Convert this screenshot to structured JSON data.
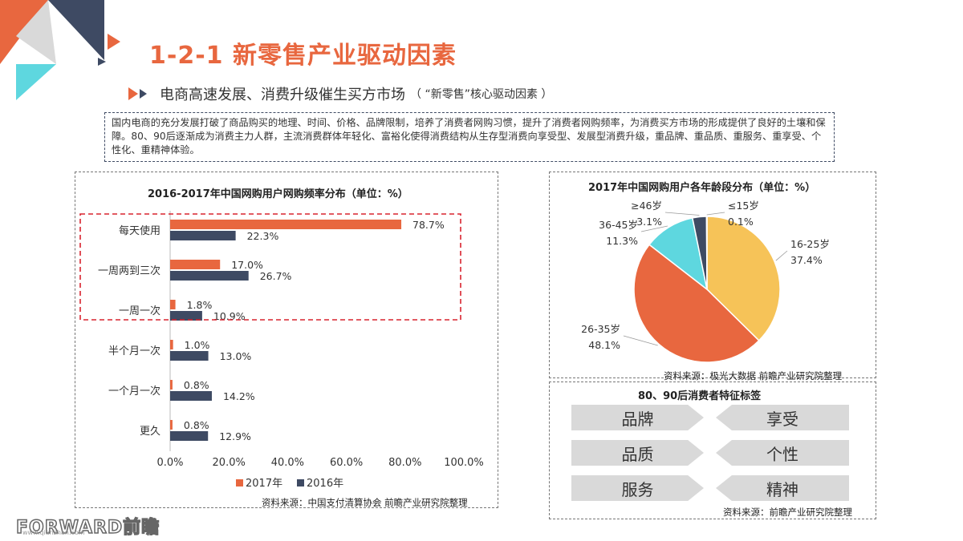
{
  "header": {
    "title": "1-2-1  新零售产业驱动因素",
    "subtitle": "电商高速发展、消费升级催生买方市场",
    "subtitle_paren": "（ “新零售”核心驱动因素 ）"
  },
  "intro_text": "国内电商的充分发展打破了商品购买的地理、时间、价格、品牌限制，培养了消费者网购习惯，提升了消费者网购频率，为消费买方市场的形成提供了良好的土壤和保障。80、90后逐渐成为消费主力人群，主流消费群体年轻化、富裕化使得消费结构从生存型消费向享受型、发展型消费升级，重品牌、重品质、重服务、重享受、个性化、重精神体验。",
  "colors": {
    "orange": "#e8673f",
    "navy": "#3e4a63",
    "yellow": "#f6c358",
    "cyan": "#5ed7df",
    "gray": "#d9d9d9"
  },
  "chart_data": [
    {
      "type": "bar",
      "orientation": "horizontal",
      "title": "2016-2017年中国网购用户网购频率分布（单位：%）",
      "categories": [
        "每天使用",
        "一周两到三次",
        "一周一次",
        "半个月一次",
        "一个月一次",
        "更久"
      ],
      "series": [
        {
          "name": "2017年",
          "color": "#e8673f",
          "values": [
            78.7,
            17.0,
            1.8,
            1.0,
            0.8,
            0.8
          ],
          "labels": [
            "78.7%",
            "17.0%",
            "1.8%",
            "1.0%",
            "0.8%",
            "0.8%"
          ]
        },
        {
          "name": "2016年",
          "color": "#3e4a63",
          "values": [
            22.3,
            26.7,
            10.9,
            13.0,
            14.2,
            12.9
          ],
          "labels": [
            "22.3%",
            "26.7%",
            "10.9%",
            "13.0%",
            "14.2%",
            "12.9%"
          ]
        }
      ],
      "xlim": [
        0,
        100
      ],
      "xticks": [
        "0.0%",
        "20.0%",
        "40.0%",
        "60.0%",
        "80.0%",
        "100.0%"
      ],
      "legend": "bottom",
      "highlight_categories": [
        "每天使用",
        "一周两到三次"
      ],
      "source": "资料来源：中国支付清算协会 前瞻产业研究院整理"
    },
    {
      "type": "pie",
      "title": "2017年中国网购用户各年龄段分布（单位：%）",
      "slices": [
        {
          "label": "16-25岁",
          "value": 37.4,
          "pct": "37.4%",
          "color": "#f6c358"
        },
        {
          "label": "26-35岁",
          "value": 48.1,
          "pct": "48.1%",
          "color": "#e8673f"
        },
        {
          "label": "36-45岁",
          "value": 11.3,
          "pct": "11.3%",
          "color": "#5ed7df"
        },
        {
          "label": "≥46岁",
          "value": 3.1,
          "pct": "3.1%",
          "color": "#3e4a63"
        },
        {
          "label": "≤15岁",
          "value": 0.1,
          "pct": "0.1%",
          "color": "#d9d9d9"
        }
      ],
      "source": "资料来源：极光大数据 前瞻产业研究院整理"
    }
  ],
  "tags_panel": {
    "title": "80、90后消费者特征标签",
    "left": [
      "品牌",
      "品质",
      "服务"
    ],
    "right": [
      "享受",
      "个性",
      "精神"
    ],
    "source": "资料来源：前瞻产业研究院整理"
  },
  "footer": {
    "logo": "FORWARD前瞻",
    "url": "www.qianzhan.com"
  }
}
